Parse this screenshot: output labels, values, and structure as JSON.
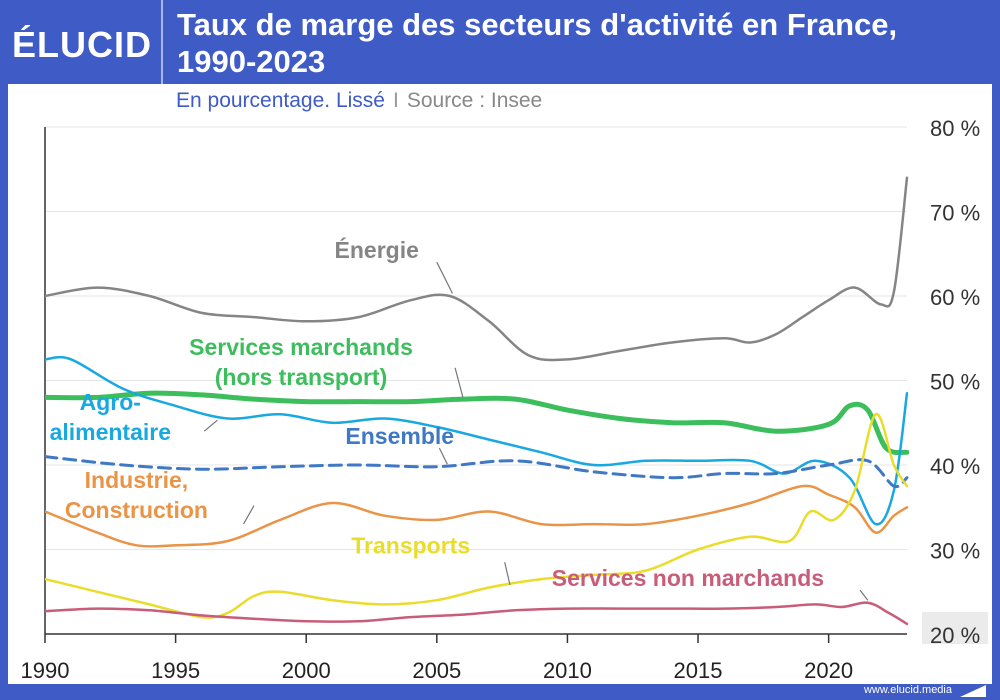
{
  "header": {
    "logo": "ÉLUCID",
    "title_line1": "Taux de marge des secteurs d'activité en France,",
    "title_line2": "1990-2023",
    "subtitle_main": "En pourcentage. Lissé",
    "subtitle_sep": "I",
    "subtitle_source": "Source : Insee"
  },
  "footer": {
    "website": "www.elucid.media"
  },
  "chart_data": {
    "type": "line",
    "title": "Taux de marge des secteurs d'activité en France, 1990-2023",
    "subtitle": "En pourcentage. Lissé",
    "source": "Source : Insee",
    "xlim": [
      1990,
      2023
    ],
    "ylim": [
      20,
      80
    ],
    "x_ticks": [
      1990,
      1995,
      2000,
      2005,
      2010,
      2015,
      2020
    ],
    "x_tick_labels": [
      "1990",
      "1995",
      "2000",
      "2005",
      "2010",
      "2015",
      "2020"
    ],
    "y_ticks": [
      20,
      30,
      40,
      50,
      60,
      70,
      80
    ],
    "y_tick_labels": [
      "20 %",
      "30 %",
      "40 %",
      "50 %",
      "60 %",
      "70 %",
      "80 %"
    ],
    "grid": true,
    "series": [
      {
        "name": "Énergie",
        "color": "#858585",
        "style": "solid",
        "points": [
          [
            1990,
            60
          ],
          [
            1992,
            61
          ],
          [
            1994,
            60
          ],
          [
            1996,
            58
          ],
          [
            1998,
            57.5
          ],
          [
            2000,
            57
          ],
          [
            2002,
            57.5
          ],
          [
            2004,
            59.5
          ],
          [
            2005.5,
            60
          ],
          [
            2007,
            57
          ],
          [
            2008.5,
            53
          ],
          [
            2010,
            52.5
          ],
          [
            2012,
            53.5
          ],
          [
            2014,
            54.5
          ],
          [
            2016,
            55
          ],
          [
            2017,
            54.5
          ],
          [
            2018,
            55.5
          ],
          [
            2019,
            57.5
          ],
          [
            2020,
            59.5
          ],
          [
            2021,
            61
          ],
          [
            2022,
            59
          ],
          [
            2022.5,
            60.5
          ],
          [
            2023,
            74
          ]
        ]
      },
      {
        "name": "Services marchands (hors transport)",
        "color": "#3cbe5c",
        "style": "solid",
        "points": [
          [
            1990,
            48
          ],
          [
            1992,
            48
          ],
          [
            1994,
            48.5
          ],
          [
            1996,
            48.3
          ],
          [
            1998,
            47.8
          ],
          [
            2000,
            47.5
          ],
          [
            2002,
            47.5
          ],
          [
            2004,
            47.5
          ],
          [
            2006,
            47.8
          ],
          [
            2008,
            47.8
          ],
          [
            2010,
            46.5
          ],
          [
            2012,
            45.5
          ],
          [
            2014,
            45
          ],
          [
            2016,
            45
          ],
          [
            2018,
            44
          ],
          [
            2020,
            44.8
          ],
          [
            2020.8,
            47
          ],
          [
            2021.5,
            46.5
          ],
          [
            2022.2,
            42
          ],
          [
            2023,
            41.5
          ]
        ]
      },
      {
        "name": "Agro-alimentaire",
        "color": "#1aa8e0",
        "style": "solid",
        "points": [
          [
            1990,
            52.5
          ],
          [
            1991,
            52.5
          ],
          [
            1993,
            49
          ],
          [
            1995,
            47
          ],
          [
            1997,
            45.5
          ],
          [
            1999,
            46
          ],
          [
            2001,
            45
          ],
          [
            2003,
            45.5
          ],
          [
            2005,
            44.5
          ],
          [
            2007,
            43
          ],
          [
            2009,
            41.5
          ],
          [
            2011,
            40
          ],
          [
            2013,
            40.5
          ],
          [
            2015,
            40.5
          ],
          [
            2017,
            40.5
          ],
          [
            2018.3,
            39
          ],
          [
            2019.5,
            40.5
          ],
          [
            2020.8,
            38.5
          ],
          [
            2021.8,
            33
          ],
          [
            2022.5,
            37
          ],
          [
            2023,
            48.5
          ]
        ]
      },
      {
        "name": "Ensemble",
        "color": "#3f78c4",
        "style": "dashed",
        "points": [
          [
            1990,
            41
          ],
          [
            1993,
            40
          ],
          [
            1996,
            39.5
          ],
          [
            1999,
            39.8
          ],
          [
            2002,
            40
          ],
          [
            2005,
            39.8
          ],
          [
            2008,
            40.5
          ],
          [
            2011,
            39.2
          ],
          [
            2014,
            38.5
          ],
          [
            2016,
            39
          ],
          [
            2018,
            39
          ],
          [
            2020,
            40
          ],
          [
            2021.5,
            40.5
          ],
          [
            2022.5,
            37.5
          ],
          [
            2023,
            38.5
          ]
        ]
      },
      {
        "name": "Industrie, Construction",
        "color": "#ea9447",
        "style": "solid",
        "points": [
          [
            1990,
            34.5
          ],
          [
            1992,
            32
          ],
          [
            1993.5,
            30.5
          ],
          [
            1995,
            30.5
          ],
          [
            1997,
            31
          ],
          [
            1999,
            33.5
          ],
          [
            2001,
            35.5
          ],
          [
            2003,
            34
          ],
          [
            2005,
            33.5
          ],
          [
            2007,
            34.5
          ],
          [
            2009,
            33
          ],
          [
            2011,
            33
          ],
          [
            2013,
            33
          ],
          [
            2015,
            34
          ],
          [
            2017,
            35.5
          ],
          [
            2019,
            37.5
          ],
          [
            2020,
            36.5
          ],
          [
            2021,
            35
          ],
          [
            2021.8,
            32
          ],
          [
            2022.5,
            34
          ],
          [
            2023,
            35
          ]
        ]
      },
      {
        "name": "Transports",
        "color": "#e9dd2c",
        "style": "solid",
        "points": [
          [
            1990,
            26.5
          ],
          [
            1992,
            25
          ],
          [
            1994,
            23.5
          ],
          [
            1996,
            22
          ],
          [
            1997,
            22.5
          ],
          [
            1998,
            24.5
          ],
          [
            1999,
            25
          ],
          [
            2001,
            24
          ],
          [
            2003,
            23.5
          ],
          [
            2005,
            24
          ],
          [
            2007,
            25.5
          ],
          [
            2009,
            26.5
          ],
          [
            2011,
            27
          ],
          [
            2013,
            27.5
          ],
          [
            2015,
            30
          ],
          [
            2017,
            31.5
          ],
          [
            2018.5,
            31
          ],
          [
            2019.3,
            34.5
          ],
          [
            2020.2,
            33.5
          ],
          [
            2021,
            37
          ],
          [
            2021.8,
            46
          ],
          [
            2022.5,
            40
          ],
          [
            2023,
            37.5
          ]
        ]
      },
      {
        "name": "Services non marchands",
        "color": "#c85d79",
        "style": "solid",
        "points": [
          [
            1990,
            22.7
          ],
          [
            1992,
            23
          ],
          [
            1994,
            22.8
          ],
          [
            1996,
            22.2
          ],
          [
            1998,
            21.8
          ],
          [
            2000,
            21.5
          ],
          [
            2002,
            21.5
          ],
          [
            2004,
            22
          ],
          [
            2006,
            22.3
          ],
          [
            2008,
            22.8
          ],
          [
            2010,
            23
          ],
          [
            2012,
            23
          ],
          [
            2014,
            23
          ],
          [
            2016,
            23
          ],
          [
            2018,
            23.2
          ],
          [
            2019.5,
            23.5
          ],
          [
            2020.5,
            23.2
          ],
          [
            2021.5,
            23.7
          ],
          [
            2022.3,
            22.5
          ],
          [
            2023,
            21.2
          ]
        ]
      }
    ],
    "annotations": [
      {
        "series": "Énergie",
        "lines": [
          "Énergie"
        ],
        "at": [
          2002.7,
          64.5
        ],
        "align": "middle",
        "leader": [
          [
            2005,
            64
          ],
          [
            2005.6,
            60.3
          ]
        ]
      },
      {
        "series": "Services marchands (hors transport)",
        "lines": [
          "Services marchands",
          "(hors transport)"
        ],
        "at": [
          1999.8,
          53
        ],
        "align": "middle",
        "leader": [
          [
            2005.7,
            51.5
          ],
          [
            2006,
            48
          ]
        ]
      },
      {
        "series": "Agro-alimentaire",
        "lines": [
          "Agro-",
          "alimentaire"
        ],
        "at": [
          1992.5,
          46.5
        ],
        "align": "middle",
        "leader": [
          [
            1996.1,
            44
          ],
          [
            1996.6,
            45.3
          ]
        ]
      },
      {
        "series": "Ensemble",
        "lines": [
          "Ensemble"
        ],
        "at": [
          2001.5,
          42.5
        ],
        "align": "start",
        "leader": [
          [
            2005.1,
            42
          ],
          [
            2005.4,
            40.1
          ]
        ]
      },
      {
        "series": "Industrie, Construction",
        "lines": [
          "Industrie,",
          "Construction"
        ],
        "at": [
          1993.5,
          37.3
        ],
        "align": "middle",
        "leader": [
          [
            1997.6,
            33
          ],
          [
            1998,
            35.2
          ]
        ]
      },
      {
        "series": "Transports",
        "lines": [
          "Transports"
        ],
        "at": [
          2004,
          29.5
        ],
        "align": "middle",
        "leader": [
          [
            2007.6,
            28.5
          ],
          [
            2007.8,
            25.8
          ]
        ]
      },
      {
        "series": "Services non marchands",
        "lines": [
          "Services non marchands"
        ],
        "at": [
          2009.4,
          25.7
        ],
        "align": "start",
        "leader": [
          [
            2021.2,
            25.2
          ],
          [
            2021.5,
            24
          ]
        ]
      }
    ]
  }
}
